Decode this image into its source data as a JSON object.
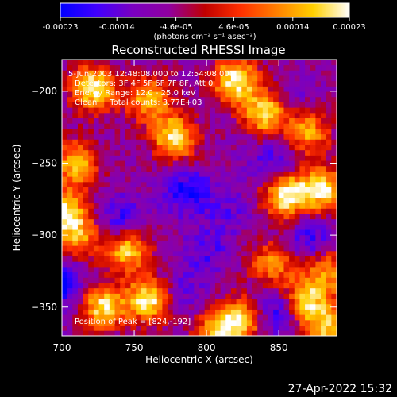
{
  "chart_data": {
    "type": "heatmap",
    "title": "Reconstructed RHESSI Image",
    "xlabel": "Heliocentric X (arcsec)",
    "ylabel": "Heliocentric Y (arcsec)",
    "xlim": [
      700,
      890
    ],
    "ylim": [
      -370,
      -178
    ],
    "x_ticks": [
      700,
      750,
      800,
      850
    ],
    "y_ticks": [
      -200,
      -250,
      -300,
      -350
    ],
    "colorbar": {
      "ticks": [
        "-0.00023",
        "-0.00014",
        "-4.6e-05",
        "4.6e-05",
        "0.00014",
        "0.00023"
      ],
      "tick_values": [
        -0.00023,
        -0.00014,
        -4.6e-05,
        4.6e-05,
        0.00014,
        0.00023
      ],
      "range": [
        -0.00023,
        0.00023
      ],
      "units": "(photons cm⁻² s⁻¹ asec⁻²)",
      "colors": [
        "#0000ff",
        "#4000ff",
        "#7a00c0",
        "#9000a0",
        "#c00000",
        "#ff3000",
        "#ff8000",
        "#ffd000",
        "#ffffff"
      ]
    },
    "annotations": [
      "5-Jun-2003 12:48:08.000 to 12:54:08.000",
      "Detectors: 3F 4F 5F 6F 7F 8F, Att 0",
      "Energy Range: 12.0 - 25.0 keV",
      "Clean     Total counts: 3.77E+03"
    ],
    "peak_label": "Position of Peak = [824,-192]",
    "bright_regions": [
      {
        "x": 722,
        "y": -198,
        "value": 0.00023
      },
      {
        "x": 820,
        "y": -192,
        "value": 0.00023
      },
      {
        "x": 840,
        "y": -215,
        "value": 0.0002
      },
      {
        "x": 778,
        "y": -232,
        "value": 0.00021
      },
      {
        "x": 760,
        "y": -205,
        "value": 0.00016
      },
      {
        "x": 710,
        "y": -250,
        "value": 0.00018
      },
      {
        "x": 700,
        "y": -283,
        "value": 0.00021
      },
      {
        "x": 712,
        "y": -300,
        "value": 0.00012
      },
      {
        "x": 855,
        "y": -272,
        "value": 0.00023
      },
      {
        "x": 880,
        "y": -268,
        "value": 0.0002
      },
      {
        "x": 745,
        "y": -310,
        "value": 0.00019
      },
      {
        "x": 728,
        "y": -350,
        "value": 0.0002
      },
      {
        "x": 760,
        "y": -345,
        "value": 0.00022
      },
      {
        "x": 808,
        "y": -368,
        "value": 0.00018
      },
      {
        "x": 825,
        "y": -358,
        "value": 0.00015
      },
      {
        "x": 868,
        "y": -345,
        "value": 0.0002
      },
      {
        "x": 884,
        "y": -325,
        "value": 0.00012
      },
      {
        "x": 884,
        "y": -365,
        "value": 0.00017
      },
      {
        "x": 870,
        "y": -228,
        "value": 0.00014
      },
      {
        "x": 845,
        "y": -320,
        "value": 0.00012
      }
    ],
    "dark_regions": [
      {
        "x": 700,
        "y": -335,
        "value": -0.00023
      },
      {
        "x": 740,
        "y": -290,
        "value": -0.0002
      },
      {
        "x": 787,
        "y": -270,
        "value": -0.00022
      },
      {
        "x": 815,
        "y": -282,
        "value": -0.00014
      },
      {
        "x": 800,
        "y": -312,
        "value": -0.00016
      },
      {
        "x": 872,
        "y": -302,
        "value": -0.00018
      },
      {
        "x": 850,
        "y": -352,
        "value": -0.00023
      },
      {
        "x": 860,
        "y": -205,
        "value": -0.00012
      },
      {
        "x": 845,
        "y": -248,
        "value": -0.00018
      },
      {
        "x": 782,
        "y": -340,
        "value": -0.00014
      }
    ]
  },
  "footer": {
    "timestamp": "27-Apr-2022 15:32"
  }
}
